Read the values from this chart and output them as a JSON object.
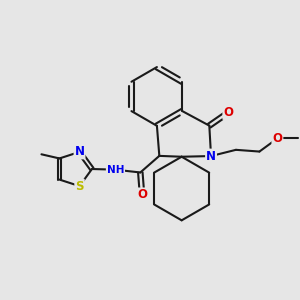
{
  "background_color": "#e6e6e6",
  "bond_color": "#1a1a1a",
  "bond_width": 1.5,
  "atom_colors": {
    "N": "#0000ee",
    "O": "#dd0000",
    "S": "#bbbb00",
    "C": "#1a1a1a"
  },
  "font_size_atom": 8.5,
  "font_size_small": 7.5
}
